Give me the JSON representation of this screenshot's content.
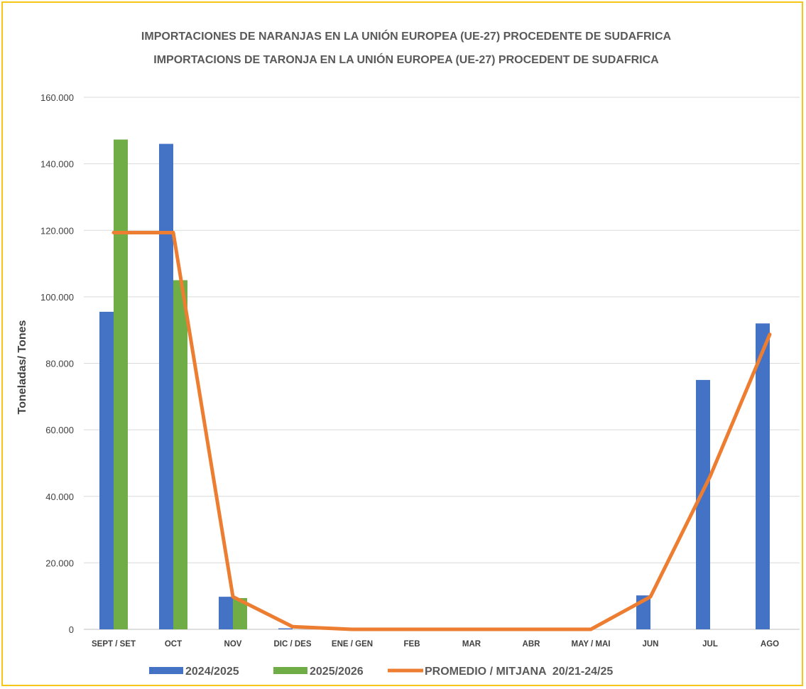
{
  "chart_data": {
    "type": "bar",
    "title_line1": "IMPORTACIONES DE NARANJAS EN LA UNIÓN EUROPEA (UE-27) PROCEDENTE DE SUDAFRICA",
    "title_line2": "IMPORTACIONS DE TARONJA EN LA UNIÓN EUROPEA (UE-27) PROCEDENT DE SUDAFRICA",
    "ylabel": "Toneladas/ Tones",
    "xlabel": "",
    "ylim": [
      0,
      160000
    ],
    "yticks": [
      0,
      20000,
      40000,
      60000,
      80000,
      100000,
      120000,
      140000,
      160000
    ],
    "ytick_labels": [
      "0",
      "20.000",
      "40.000",
      "60.000",
      "80.000",
      "100.000",
      "120.000",
      "140.000",
      "160.000"
    ],
    "categories": [
      "SEPT / SET",
      "OCT",
      "NOV",
      "DIC / DES",
      "ENE / GEN",
      "FEB",
      "MAR",
      "ABR",
      "MAY / MAI",
      "JUN",
      "JUL",
      "AGO"
    ],
    "series": [
      {
        "name": "2024/2025",
        "kind": "bar",
        "color": "#4472c4",
        "values": [
          95500,
          146000,
          9800,
          300,
          0,
          0,
          0,
          0,
          0,
          10200,
          75000,
          92000
        ]
      },
      {
        "name": "2025/2026",
        "kind": "bar",
        "color": "#70ad47",
        "values": [
          147300,
          105000,
          9400,
          null,
          null,
          null,
          null,
          null,
          null,
          null,
          null,
          null
        ]
      },
      {
        "name": "PROMEDIO / MITJANA  20/21-24/25",
        "kind": "line",
        "color": "#ed7d31",
        "values": [
          119300,
          119300,
          9800,
          800,
          0,
          0,
          0,
          0,
          0,
          9800,
          46000,
          88700
        ]
      }
    ],
    "grid": true,
    "legend_position": "bottom"
  }
}
